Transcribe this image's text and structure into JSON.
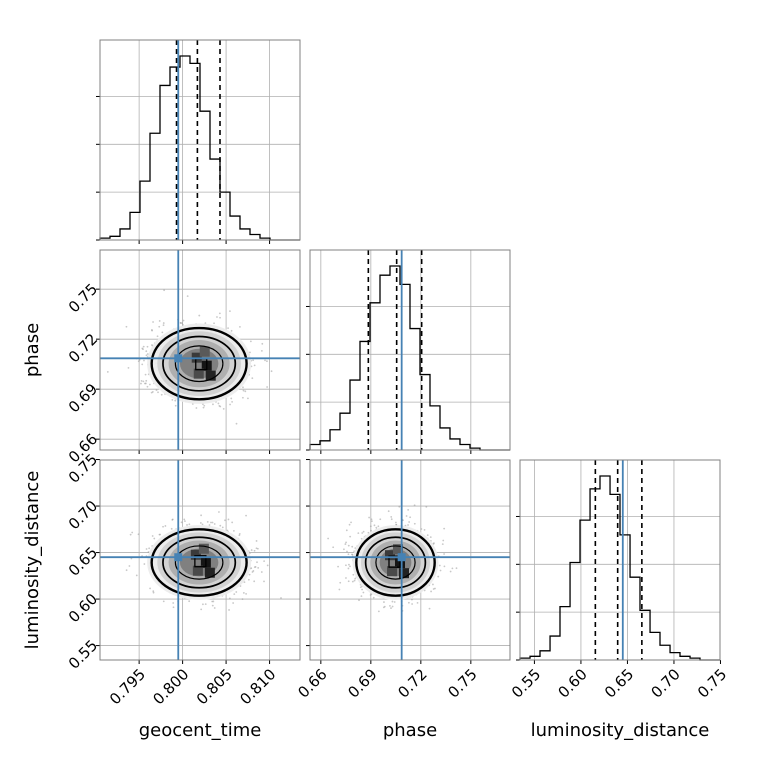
{
  "colors": {
    "truth": "#4682b4",
    "grid": "#b0b0b0",
    "line": "#000000",
    "samples": "#9a9a9a"
  },
  "chart_data": {
    "type": "corner",
    "parameters": [
      "geocent_time",
      "phase",
      "luminosity_distance"
    ],
    "grid": true,
    "truths": {
      "geocent_time": 0.7995,
      "phase": 0.7085,
      "luminosity_distance": 0.645
    },
    "quantiles": {
      "geocent_time": [
        0.7993,
        0.8017,
        0.8043
      ],
      "phase": [
        0.6885,
        0.7055,
        0.7205
      ],
      "luminosity_distance": [
        0.6155,
        0.6395,
        0.6655
      ]
    },
    "axes": {
      "geocent_time": {
        "range": [
          0.7905,
          0.8135
        ],
        "ticks": [
          0.795,
          0.8,
          0.805,
          0.81
        ],
        "tick_labels": [
          "0.795",
          "0.800",
          "0.805",
          "0.810"
        ]
      },
      "phase": {
        "range": [
          0.6535,
          0.7735
        ],
        "ticks": [
          0.66,
          0.69,
          0.72,
          0.75
        ],
        "tick_labels": [
          "0.66",
          "0.69",
          "0.72",
          "0.75"
        ]
      },
      "luminosity_distance": {
        "range": [
          0.5345,
          0.7495
        ],
        "ticks": [
          0.55,
          0.6,
          0.65,
          0.7,
          0.75
        ],
        "tick_labels": [
          "0.55",
          "0.60",
          "0.65",
          "0.70",
          "0.75"
        ]
      }
    },
    "histograms": {
      "geocent_time": {
        "bin_edges": [
          0.7905,
          0.79165,
          0.7928,
          0.79395,
          0.7951,
          0.79625,
          0.7974,
          0.79855,
          0.7997,
          0.80085,
          0.802,
          0.80315,
          0.8043,
          0.80545,
          0.8066,
          0.80775,
          0.8089,
          0.81005,
          0.8112,
          0.81235,
          0.8135
        ],
        "values": [
          0.01,
          0.02,
          0.06,
          0.15,
          0.32,
          0.58,
          0.84,
          0.94,
          1.0,
          0.96,
          0.7,
          0.44,
          0.26,
          0.13,
          0.06,
          0.03,
          0.01,
          0.0,
          0.0,
          0.0
        ]
      },
      "phase": {
        "bin_edges": [
          0.6535,
          0.6595,
          0.6655,
          0.6715,
          0.6775,
          0.6835,
          0.6895,
          0.6955,
          0.7015,
          0.7075,
          0.7135,
          0.7195,
          0.7255,
          0.7315,
          0.7375,
          0.7435,
          0.7495,
          0.7555,
          0.7615,
          0.7675,
          0.7735
        ],
        "values": [
          0.03,
          0.05,
          0.11,
          0.2,
          0.38,
          0.59,
          0.8,
          0.95,
          1.0,
          0.9,
          0.66,
          0.41,
          0.24,
          0.12,
          0.06,
          0.03,
          0.01,
          0.0,
          0.0,
          0.0
        ]
      },
      "luminosity_distance": {
        "bin_edges": [
          0.5345,
          0.5453,
          0.556,
          0.5668,
          0.5775,
          0.5883,
          0.599,
          0.6098,
          0.6205,
          0.6313,
          0.642,
          0.6528,
          0.6635,
          0.6743,
          0.685,
          0.6958,
          0.7065,
          0.7173,
          0.728,
          0.7388,
          0.7495
        ],
        "values": [
          0.01,
          0.02,
          0.05,
          0.13,
          0.29,
          0.53,
          0.76,
          0.93,
          1.0,
          0.9,
          0.68,
          0.45,
          0.27,
          0.15,
          0.08,
          0.04,
          0.02,
          0.01,
          0.0,
          0.0
        ]
      }
    },
    "scatter_2d": [
      {
        "x_param": "geocent_time",
        "y_param": "phase",
        "center": [
          0.8019,
          0.7053
        ],
        "sigma": [
          0.0026,
          0.0105
        ],
        "density_peak": [
          0.8022,
          0.7035
        ]
      },
      {
        "x_param": "geocent_time",
        "y_param": "luminosity_distance",
        "center": [
          0.8019,
          0.6393
        ],
        "sigma": [
          0.0026,
          0.0175
        ],
        "density_peak": [
          0.8021,
          0.638
        ]
      },
      {
        "x_param": "phase",
        "y_param": "luminosity_distance",
        "center": [
          0.7048,
          0.6393
        ],
        "sigma": [
          0.0112,
          0.0175
        ],
        "density_peak": [
          0.7045,
          0.6375
        ]
      }
    ]
  }
}
